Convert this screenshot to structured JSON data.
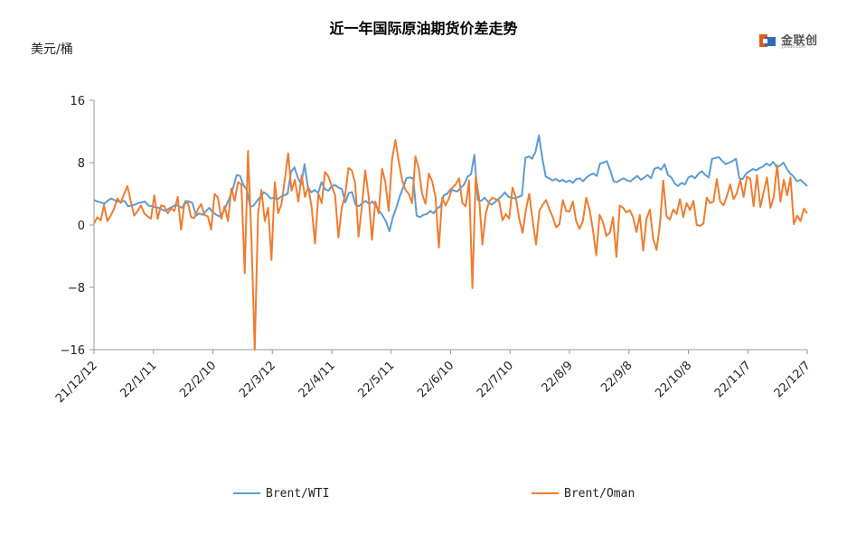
{
  "chart_data": {
    "type": "line",
    "title": "近一年国际原油期货价差走势",
    "ylabel": "美元/桶",
    "ylim": [
      -16,
      16
    ],
    "yticks": [
      16,
      8,
      0,
      -8,
      -16
    ],
    "x_tick_labels": [
      "21/12/12",
      "22/1/11",
      "22/2/10",
      "22/3/12",
      "22/4/11",
      "22/5/11",
      "22/6/10",
      "22/7/10",
      "22/8/9",
      "22/9/8",
      "22/10/8",
      "22/11/7",
      "22/12/7"
    ],
    "grid": false,
    "legend_position": "bottom",
    "series": [
      {
        "name": "Brent/WTI",
        "color": "#5B9BD5",
        "values": [
          3.2,
          3.0,
          2.9,
          2.7,
          3.1,
          3.4,
          3.2,
          3.0,
          3.0,
          3.1,
          2.4,
          2.5,
          2.6,
          2.8,
          2.9,
          3.0,
          2.5,
          2.4,
          2.3,
          2.2,
          2.0,
          1.8,
          2.1,
          2.3,
          2.6,
          2.4,
          2.2,
          3.1,
          3.0,
          2.8,
          1.2,
          1.5,
          1.3,
          1.8,
          2.2,
          1.6,
          1.3,
          1.1,
          1.6,
          2.5,
          3.6,
          4.8,
          6.4,
          6.3,
          5.1,
          4.5,
          2.3,
          2.5,
          3.1,
          3.6,
          4.2,
          3.9,
          3.4,
          3.5,
          3.3,
          3.6,
          3.8,
          4.0,
          6.8,
          7.4,
          6.1,
          5.2,
          7.8,
          4.8,
          4.2,
          4.5,
          4.1,
          5.5,
          4.6,
          4.4,
          5.0,
          5.1,
          4.8,
          4.6,
          2.9,
          4.1,
          4.2,
          2.6,
          2.4,
          2.8,
          3.1,
          2.7,
          3.0,
          2.5,
          1.8,
          1.2,
          0.4,
          -0.8,
          1.0,
          2.2,
          3.6,
          4.8,
          6.0,
          6.1,
          6.0,
          1.2,
          1.0,
          1.3,
          1.4,
          1.8,
          1.5,
          2.1,
          2.4,
          3.8,
          4.0,
          4.6,
          4.4,
          4.3,
          4.8,
          5.2,
          6.2,
          6.5,
          9.0,
          3.2,
          3.1,
          3.5,
          3.0,
          2.6,
          2.9,
          3.3,
          3.7,
          4.2,
          3.6,
          3.5,
          3.4,
          3.6,
          3.8,
          8.6,
          8.8,
          8.5,
          9.4,
          11.5,
          8.6,
          6.2,
          6.0,
          5.7,
          5.9,
          5.6,
          5.8,
          5.5,
          5.7,
          5.4,
          5.9,
          6.0,
          5.6,
          6.1,
          6.4,
          6.6,
          6.3,
          7.9,
          8.0,
          8.2,
          7.0,
          5.6,
          5.5,
          5.8,
          6.0,
          5.7,
          5.6,
          6.0,
          6.3,
          5.8,
          6.1,
          6.4,
          6.0,
          7.2,
          7.4,
          7.1,
          7.8,
          6.4,
          6.1,
          5.3,
          5.0,
          5.4,
          5.2,
          6.1,
          6.3,
          6.0,
          6.6,
          6.9,
          6.4,
          6.1,
          8.5,
          8.6,
          8.7,
          8.2,
          7.8,
          8.0,
          8.2,
          8.5,
          6.0,
          5.9,
          6.6,
          6.9,
          7.2,
          7.0,
          7.3,
          7.5,
          7.9,
          7.6,
          8.1,
          7.4,
          7.6,
          8.0,
          7.2,
          6.6,
          6.2,
          5.6,
          5.8,
          5.4,
          5.0
        ]
      },
      {
        "name": "Brent/Oman",
        "color": "#ED7D31",
        "values": [
          0.2,
          1.0,
          0.6,
          2.5,
          0.5,
          1.2,
          2.1,
          3.4,
          2.8,
          4.0,
          5.0,
          3.0,
          1.2,
          1.8,
          2.5,
          1.5,
          1.1,
          0.8,
          3.8,
          0.8,
          2.5,
          2.4,
          1.5,
          2.1,
          1.8,
          3.6,
          -0.6,
          2.7,
          2.9,
          1.0,
          0.9,
          2.0,
          2.7,
          1.3,
          1.1,
          -0.6,
          4.0,
          3.5,
          0.8,
          2.4,
          0.5,
          4.7,
          3.1,
          5.5,
          5.2,
          -6.2,
          9.5,
          -1.5,
          -16.0,
          1.5,
          4.5,
          0.5,
          2.2,
          -4.5,
          5.5,
          1.5,
          2.7,
          5.8,
          9.2,
          4.4,
          5.8,
          3.0,
          6.4,
          3.6,
          4.9,
          2.2,
          -2.4,
          4.0,
          2.8,
          6.8,
          6.2,
          5.0,
          3.8,
          -1.6,
          2.3,
          3.8,
          7.3,
          7.0,
          5.4,
          -1.5,
          2.3,
          7.0,
          3.8,
          -1.9,
          3.0,
          1.5,
          7.2,
          5.5,
          1.8,
          8.4,
          10.9,
          8.2,
          5.8,
          4.5,
          4.0,
          2.8,
          8.8,
          7.2,
          4.0,
          2.7,
          6.6,
          5.6,
          3.6,
          -2.9,
          3.5,
          2.5,
          3.4,
          4.8,
          5.2,
          6.0,
          2.8,
          2.4,
          5.7,
          -8.1,
          6.2,
          3.5,
          -2.5,
          1.5,
          3.0,
          3.5,
          3.3,
          3.1,
          0.6,
          1.4,
          0.8,
          4.8,
          3.5,
          0.8,
          -1.0,
          2.0,
          4.0,
          0.5,
          -2.5,
          1.8,
          2.6,
          3.2,
          2.0,
          1.0,
          -0.3,
          0.1,
          3.2,
          1.8,
          1.7,
          3.0,
          0.5,
          -0.5,
          0.5,
          3.5,
          2.0,
          -0.6,
          -3.9,
          1.3,
          0.4,
          -1.4,
          -1.0,
          1.0,
          -4.1,
          2.5,
          2.2,
          1.6,
          1.9,
          1.0,
          -0.9,
          1.3,
          -3.3,
          0.8,
          2.0,
          -1.8,
          -3.2,
          0.0,
          5.7,
          1.1,
          0.7,
          2.0,
          1.4,
          3.3,
          1.0,
          2.8,
          1.9,
          3.1,
          0.0,
          -0.1,
          0.2,
          3.5,
          2.8,
          3.0,
          5.9,
          3.0,
          2.5,
          3.7,
          5.2,
          3.3,
          4.1,
          5.8,
          3.6,
          6.2,
          5.9,
          2.4,
          6.4,
          2.3,
          4.2,
          6.1,
          2.2,
          3.6,
          7.7,
          3.0,
          5.8,
          3.8,
          6.1,
          0.1,
          1.2,
          0.5,
          2.1,
          1.5
        ]
      }
    ]
  },
  "logo": {
    "text": "金联创",
    "sub": "jlcsuo.com"
  }
}
